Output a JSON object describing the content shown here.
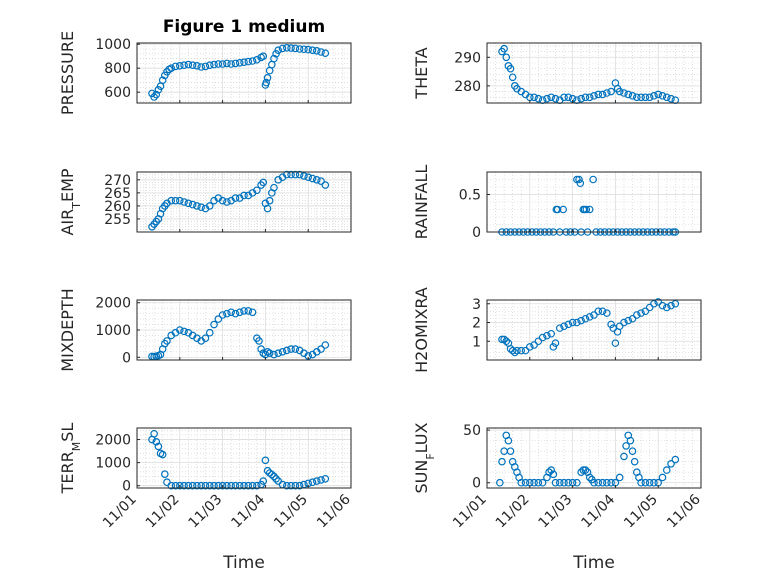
{
  "figure": {
    "title": "Figure 1 medium",
    "marker_color": "#0072BD",
    "grid": true,
    "minor_grid": true
  },
  "chart_data": [
    {
      "type": "scatter",
      "title": "Figure 1 medium",
      "ylabel": "PRESSURE",
      "xlabel": "",
      "xlim": [
        "11/01",
        "11/06"
      ],
      "ylim": [
        510,
        1010
      ],
      "yticks": [
        600,
        800,
        1000
      ],
      "xticks": [
        "11/01",
        "11/02",
        "11/03",
        "11/04",
        "11/05",
        "11/06"
      ],
      "x": [
        1.35,
        1.4,
        1.45,
        1.5,
        1.55,
        1.6,
        1.65,
        1.7,
        1.75,
        1.8,
        1.9,
        2.0,
        2.1,
        2.2,
        2.3,
        2.4,
        2.5,
        2.6,
        2.7,
        2.8,
        2.9,
        3.0,
        3.1,
        3.2,
        3.3,
        3.4,
        3.5,
        3.6,
        3.7,
        3.8,
        3.9,
        3.95,
        4.0,
        4.02,
        4.05,
        4.1,
        4.15,
        4.2,
        4.25,
        4.3,
        4.4,
        4.5,
        4.6,
        4.7,
        4.8,
        4.9,
        5.0,
        5.1,
        5.2,
        5.3,
        5.4
      ],
      "y": [
        590,
        560,
        580,
        620,
        650,
        700,
        740,
        770,
        790,
        800,
        815,
        820,
        825,
        830,
        825,
        820,
        810,
        815,
        825,
        830,
        835,
        835,
        840,
        835,
        840,
        845,
        850,
        855,
        860,
        870,
        890,
        900,
        660,
        680,
        720,
        780,
        830,
        880,
        920,
        950,
        965,
        970,
        968,
        965,
        960,
        958,
        955,
        950,
        945,
        935,
        925
      ]
    },
    {
      "type": "scatter",
      "ylabel": "THETA",
      "xlabel": "",
      "xlim": [
        "11/01",
        "11/06"
      ],
      "ylim": [
        274,
        295
      ],
      "yticks": [
        280,
        290
      ],
      "xticks": [
        "11/01",
        "11/02",
        "11/03",
        "11/04",
        "11/05",
        "11/06"
      ],
      "x": [
        1.35,
        1.4,
        1.45,
        1.5,
        1.55,
        1.6,
        1.65,
        1.7,
        1.8,
        1.9,
        2.0,
        2.1,
        2.2,
        2.3,
        2.4,
        2.5,
        2.6,
        2.7,
        2.8,
        2.9,
        3.0,
        3.1,
        3.2,
        3.3,
        3.4,
        3.5,
        3.6,
        3.7,
        3.8,
        3.9,
        4.0,
        4.05,
        4.1,
        4.2,
        4.3,
        4.4,
        4.5,
        4.6,
        4.7,
        4.8,
        4.9,
        5.0,
        5.1,
        5.2,
        5.3,
        5.4
      ],
      "y": [
        292,
        293,
        290,
        287,
        286,
        283,
        280,
        279,
        278,
        277,
        276,
        276,
        275.5,
        275,
        275.5,
        276,
        275.5,
        275,
        276,
        276,
        275.5,
        275,
        275.5,
        276,
        276,
        276.5,
        277,
        277,
        277.5,
        278,
        281,
        279,
        278,
        277.5,
        277,
        276.5,
        276,
        276,
        276,
        276,
        276.5,
        277,
        276.5,
        276,
        275.5,
        275
      ]
    },
    {
      "type": "scatter",
      "ylabel": "AIR_TEMP",
      "xlabel": "",
      "xlim": [
        "11/01",
        "11/06"
      ],
      "ylim": [
        250,
        273
      ],
      "yticks": [
        255,
        260,
        265,
        270
      ],
      "xticks": [
        "11/01",
        "11/02",
        "11/03",
        "11/04",
        "11/05",
        "11/06"
      ],
      "x": [
        1.35,
        1.4,
        1.45,
        1.5,
        1.55,
        1.6,
        1.65,
        1.7,
        1.8,
        1.9,
        2.0,
        2.1,
        2.2,
        2.3,
        2.4,
        2.5,
        2.6,
        2.7,
        2.8,
        2.9,
        3.0,
        3.1,
        3.2,
        3.3,
        3.4,
        3.5,
        3.6,
        3.7,
        3.8,
        3.9,
        3.95,
        4.0,
        4.05,
        4.1,
        4.15,
        4.2,
        4.3,
        4.4,
        4.5,
        4.6,
        4.7,
        4.8,
        4.9,
        5.0,
        5.1,
        5.2,
        5.3,
        5.4
      ],
      "y": [
        252,
        253,
        254,
        255,
        257,
        259,
        260,
        261,
        262,
        262,
        262,
        261.5,
        261,
        260.5,
        260,
        259.5,
        259,
        260,
        262,
        263,
        262,
        261.5,
        262,
        263,
        263,
        264,
        264,
        265,
        266,
        268,
        269,
        261,
        259,
        262,
        265,
        267,
        270,
        271,
        272,
        272,
        272,
        272,
        271.5,
        271,
        270.5,
        270,
        269.5,
        268
      ]
    },
    {
      "type": "scatter",
      "ylabel": "RAINFALL",
      "xlabel": "",
      "xlim": [
        "11/01",
        "11/06"
      ],
      "ylim": [
        0,
        0.8
      ],
      "yticks": [
        0,
        0.5
      ],
      "xticks": [
        "11/01",
        "11/02",
        "11/03",
        "11/04",
        "11/05",
        "11/06"
      ],
      "x": [
        1.35,
        1.45,
        1.55,
        1.65,
        1.75,
        1.85,
        1.95,
        2.05,
        2.15,
        2.25,
        2.35,
        2.45,
        2.55,
        2.62,
        2.65,
        2.7,
        2.78,
        2.85,
        2.95,
        3.05,
        3.1,
        3.15,
        3.18,
        3.2,
        3.25,
        3.28,
        3.32,
        3.35,
        3.4,
        3.48,
        3.55,
        3.65,
        3.75,
        3.85,
        3.95,
        4.05,
        4.15,
        4.25,
        4.35,
        4.45,
        4.55,
        4.65,
        4.75,
        4.85,
        4.95,
        5.05,
        5.15,
        5.25,
        5.35,
        5.4
      ],
      "y": [
        0,
        0,
        0,
        0,
        0,
        0,
        0,
        0,
        0,
        0,
        0,
        0,
        0,
        0.3,
        0.3,
        0,
        0.3,
        0,
        0,
        0,
        0.7,
        0.7,
        0.65,
        0,
        0.3,
        0.3,
        0.3,
        0,
        0.3,
        0.7,
        0,
        0,
        0,
        0,
        0,
        0,
        0,
        0,
        0,
        0,
        0,
        0,
        0,
        0,
        0,
        0,
        0,
        0,
        0,
        0
      ]
    },
    {
      "type": "scatter",
      "ylabel": "MIXDEPTH",
      "xlabel": "",
      "xlim": [
        "11/01",
        "11/06"
      ],
      "ylim": [
        -100,
        2100
      ],
      "yticks": [
        0,
        1000,
        2000
      ],
      "xticks": [
        "11/01",
        "11/02",
        "11/03",
        "11/04",
        "11/05",
        "11/06"
      ],
      "x": [
        1.35,
        1.4,
        1.45,
        1.5,
        1.55,
        1.6,
        1.65,
        1.7,
        1.8,
        1.9,
        2.0,
        2.1,
        2.2,
        2.3,
        2.4,
        2.5,
        2.6,
        2.7,
        2.8,
        2.9,
        3.0,
        3.1,
        3.2,
        3.3,
        3.4,
        3.5,
        3.6,
        3.7,
        3.8,
        3.85,
        3.9,
        3.95,
        4.0,
        4.05,
        4.1,
        4.2,
        4.3,
        4.4,
        4.5,
        4.6,
        4.7,
        4.8,
        4.9,
        5.0,
        5.1,
        5.2,
        5.3,
        5.4
      ],
      "y": [
        30,
        20,
        40,
        60,
        100,
        300,
        500,
        600,
        800,
        900,
        1000,
        950,
        900,
        800,
        700,
        600,
        700,
        900,
        1200,
        1400,
        1550,
        1600,
        1650,
        1600,
        1650,
        1700,
        1700,
        1650,
        700,
        600,
        300,
        150,
        100,
        200,
        150,
        100,
        150,
        200,
        250,
        300,
        300,
        250,
        150,
        50,
        100,
        200,
        300,
        450
      ]
    },
    {
      "type": "scatter",
      "ylabel": "H2OMIXRA",
      "xlabel": "",
      "xlim": [
        "11/01",
        "11/06"
      ],
      "ylim": [
        0,
        3.2
      ],
      "yticks": [
        1,
        2,
        3
      ],
      "xticks": [
        "11/01",
        "11/02",
        "11/03",
        "11/04",
        "11/05",
        "11/06"
      ],
      "x": [
        1.35,
        1.4,
        1.45,
        1.5,
        1.55,
        1.6,
        1.65,
        1.7,
        1.8,
        1.9,
        2.0,
        2.1,
        2.2,
        2.3,
        2.4,
        2.5,
        2.55,
        2.6,
        2.7,
        2.8,
        2.9,
        3.0,
        3.1,
        3.2,
        3.3,
        3.4,
        3.5,
        3.6,
        3.7,
        3.8,
        3.9,
        3.95,
        4.0,
        4.05,
        4.1,
        4.2,
        4.3,
        4.4,
        4.5,
        4.6,
        4.7,
        4.8,
        4.9,
        5.0,
        5.1,
        5.2,
        5.3,
        5.4
      ],
      "y": [
        1.1,
        1.1,
        1.0,
        0.9,
        0.6,
        0.5,
        0.4,
        0.5,
        0.5,
        0.5,
        0.7,
        0.8,
        1.0,
        1.2,
        1.3,
        1.4,
        0.7,
        0.9,
        1.7,
        1.8,
        1.9,
        2.0,
        2.0,
        2.1,
        2.2,
        2.3,
        2.4,
        2.6,
        2.6,
        2.5,
        1.9,
        1.7,
        0.9,
        1.5,
        1.8,
        2.0,
        2.1,
        2.2,
        2.4,
        2.5,
        2.6,
        2.8,
        3.0,
        3.1,
        2.9,
        2.8,
        2.9,
        3.0
      ]
    },
    {
      "type": "scatter",
      "ylabel": "TERR_MSL",
      "xlabel": "Time",
      "xlim": [
        "11/01",
        "11/06"
      ],
      "ylim": [
        -100,
        2500
      ],
      "yticks": [
        0,
        1000,
        2000
      ],
      "xticks": [
        "11/01",
        "11/02",
        "11/03",
        "11/04",
        "11/05",
        "11/06"
      ],
      "x": [
        1.35,
        1.4,
        1.45,
        1.5,
        1.55,
        1.6,
        1.65,
        1.7,
        1.8,
        1.9,
        2.0,
        2.1,
        2.2,
        2.3,
        2.4,
        2.5,
        2.6,
        2.7,
        2.8,
        2.9,
        3.0,
        3.1,
        3.2,
        3.3,
        3.4,
        3.5,
        3.6,
        3.7,
        3.8,
        3.9,
        3.95,
        4.0,
        4.05,
        4.1,
        4.15,
        4.2,
        4.25,
        4.3,
        4.4,
        4.5,
        4.6,
        4.7,
        4.8,
        4.9,
        5.0,
        5.1,
        5.2,
        5.3,
        5.4
      ],
      "y": [
        2000,
        2250,
        1900,
        1700,
        1400,
        1350,
        500,
        150,
        0,
        0,
        0,
        0,
        0,
        0,
        0,
        0,
        0,
        0,
        0,
        0,
        0,
        0,
        0,
        0,
        0,
        0,
        0,
        0,
        0,
        50,
        200,
        1100,
        650,
        550,
        480,
        400,
        300,
        200,
        50,
        0,
        0,
        0,
        0,
        50,
        100,
        150,
        200,
        250,
        300
      ]
    },
    {
      "type": "scatter",
      "ylabel": "SUN_FLUX",
      "xlabel": "Time",
      "xlim": [
        "11/01",
        "11/06"
      ],
      "ylim": [
        -5,
        52
      ],
      "yticks": [
        0,
        50
      ],
      "xticks": [
        "11/01",
        "11/02",
        "11/03",
        "11/04",
        "11/05",
        "11/06"
      ],
      "x": [
        1.3,
        1.35,
        1.4,
        1.45,
        1.5,
        1.55,
        1.6,
        1.65,
        1.7,
        1.75,
        1.8,
        1.9,
        2.0,
        2.1,
        2.2,
        2.3,
        2.4,
        2.45,
        2.5,
        2.55,
        2.6,
        2.7,
        2.8,
        2.9,
        3.0,
        3.1,
        3.2,
        3.25,
        3.3,
        3.35,
        3.4,
        3.45,
        3.5,
        3.6,
        3.7,
        3.8,
        3.9,
        4.0,
        4.1,
        4.2,
        4.25,
        4.3,
        4.35,
        4.4,
        4.45,
        4.5,
        4.55,
        4.6,
        4.7,
        4.8,
        4.9,
        5.0,
        5.1,
        5.2,
        5.3,
        5.4
      ],
      "y": [
        0,
        20,
        30,
        45,
        40,
        30,
        20,
        15,
        10,
        5,
        0,
        0,
        0,
        0,
        0,
        0,
        5,
        10,
        12,
        8,
        0,
        0,
        0,
        0,
        0,
        0,
        10,
        12,
        12,
        10,
        5,
        3,
        0,
        0,
        0,
        0,
        0,
        0,
        5,
        25,
        35,
        45,
        40,
        30,
        20,
        10,
        5,
        0,
        0,
        0,
        0,
        0,
        5,
        12,
        18,
        22
      ]
    }
  ]
}
